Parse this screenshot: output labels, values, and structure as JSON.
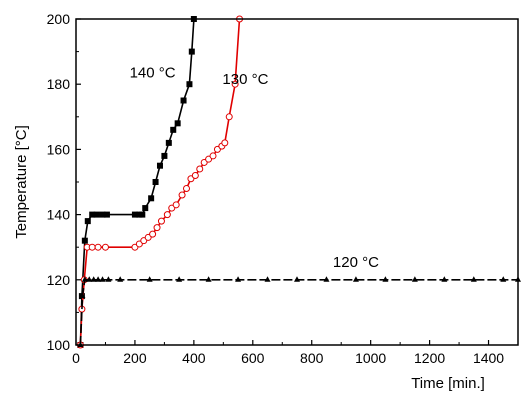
{
  "chart_data": {
    "type": "line",
    "xlabel": "Time [min.]",
    "ylabel": "Temperature [°C]",
    "xlim": [
      0,
      1500
    ],
    "ylim": [
      100,
      200
    ],
    "xticks": [
      0,
      200,
      400,
      600,
      800,
      1000,
      1200,
      1400
    ],
    "yticks": [
      100,
      120,
      140,
      160,
      180,
      200
    ],
    "grid": false,
    "legend": "none",
    "series": [
      {
        "name": "140 °C",
        "color": "#000000",
        "marker": "filled-square",
        "points": [
          [
            15,
            100
          ],
          [
            20,
            115
          ],
          [
            30,
            132
          ],
          [
            40,
            138
          ],
          [
            55,
            140
          ],
          [
            70,
            140
          ],
          [
            90,
            140
          ],
          [
            105,
            140
          ],
          [
            200,
            140
          ],
          [
            215,
            140
          ],
          [
            225,
            140
          ],
          [
            235,
            142
          ],
          [
            255,
            145
          ],
          [
            270,
            150
          ],
          [
            285,
            155
          ],
          [
            300,
            158
          ],
          [
            315,
            162
          ],
          [
            330,
            166
          ],
          [
            345,
            168
          ],
          [
            365,
            175
          ],
          [
            385,
            180
          ],
          [
            393,
            190
          ],
          [
            400,
            200
          ]
        ]
      },
      {
        "name": "130 °C",
        "color": "#e00000",
        "marker": "open-circle",
        "points": [
          [
            15,
            100
          ],
          [
            20,
            111
          ],
          [
            28,
            120
          ],
          [
            38,
            130
          ],
          [
            55,
            130
          ],
          [
            75,
            130
          ],
          [
            100,
            130
          ],
          [
            200,
            130
          ],
          [
            215,
            131
          ],
          [
            230,
            132
          ],
          [
            245,
            133
          ],
          [
            260,
            134
          ],
          [
            275,
            136
          ],
          [
            290,
            138
          ],
          [
            310,
            140
          ],
          [
            325,
            142
          ],
          [
            340,
            143
          ],
          [
            360,
            146
          ],
          [
            375,
            148
          ],
          [
            390,
            151
          ],
          [
            405,
            152
          ],
          [
            420,
            154
          ],
          [
            435,
            156
          ],
          [
            450,
            157
          ],
          [
            465,
            158
          ],
          [
            480,
            160
          ],
          [
            495,
            161
          ],
          [
            505,
            162
          ],
          [
            520,
            170
          ],
          [
            540,
            180
          ],
          [
            555,
            200
          ]
        ]
      },
      {
        "name": "120 °C",
        "color": "#000000",
        "marker": "filled-triangle",
        "points": [
          [
            15,
            100
          ],
          [
            22,
            115
          ],
          [
            30,
            120
          ],
          [
            45,
            120
          ],
          [
            60,
            120
          ],
          [
            75,
            120
          ],
          [
            90,
            120
          ],
          [
            110,
            120
          ],
          [
            150,
            120
          ],
          [
            250,
            120
          ],
          [
            350,
            120
          ],
          [
            450,
            120
          ],
          [
            550,
            120
          ],
          [
            650,
            120
          ],
          [
            750,
            120
          ],
          [
            850,
            120
          ],
          [
            950,
            120
          ],
          [
            1050,
            120
          ],
          [
            1150,
            120
          ],
          [
            1250,
            120
          ],
          [
            1350,
            120
          ],
          [
            1450,
            120
          ],
          [
            1500,
            120
          ]
        ]
      }
    ],
    "annotations": [
      {
        "text": "140 °C",
        "x": 260,
        "y": 182
      },
      {
        "text": "130 °C",
        "x": 575,
        "y": 180
      },
      {
        "text": "120 °C",
        "x": 950,
        "y": 124
      }
    ]
  }
}
